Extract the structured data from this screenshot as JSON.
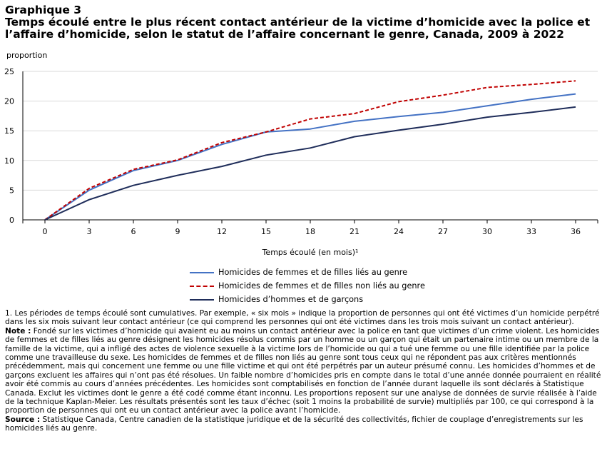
{
  "header": {
    "label": "Graphique 3",
    "title_line1": "Temps écoulé entre le plus récent contact antérieur de la victime d’homicide avec la police et",
    "title_line2": "l’affaire d’homicide, selon le statut de l’affaire concernant le genre, Canada, 2009 à 2022"
  },
  "chart_data": {
    "type": "line",
    "title": "Temps écoulé entre le plus récent contact antérieur de la victime d’homicide avec la police et l’affaire d’homicide, selon le statut de l’affaire concernant le genre, Canada, 2009 à 2022",
    "ylabel": "proportion",
    "xlabel": "Temps écoulé (en mois)¹",
    "x": [
      0,
      3,
      6,
      9,
      12,
      15,
      18,
      21,
      24,
      27,
      30,
      33,
      36
    ],
    "ylim": [
      0,
      25
    ],
    "xlim": [
      -1.5,
      37.5
    ],
    "yticks": [
      0,
      5,
      10,
      15,
      20,
      25
    ],
    "grid": "horizontal",
    "legend_position": "bottom",
    "series": [
      {
        "name": "Homicides de femmes et de filles liés au genre",
        "color": "#4472c4",
        "style": "solid",
        "values": [
          0,
          5.0,
          8.3,
          10.0,
          12.7,
          14.8,
          15.3,
          16.6,
          17.4,
          18.1,
          19.2,
          20.3,
          21.2
        ]
      },
      {
        "name": "Homicides de femmes et de filles non liés au genre",
        "color": "#c00000",
        "style": "dashed",
        "values": [
          0,
          5.3,
          8.5,
          10.1,
          13.0,
          14.8,
          17.0,
          17.9,
          19.9,
          21.0,
          22.3,
          22.8,
          23.4
        ]
      },
      {
        "name": "Homicides d’hommes et de garçons",
        "color": "#1f2d5a",
        "style": "solid",
        "values": [
          0,
          3.4,
          5.8,
          7.5,
          9.0,
          10.9,
          12.1,
          14.0,
          15.1,
          16.1,
          17.3,
          18.1,
          19.0
        ]
      }
    ]
  },
  "footer": {
    "note1": "1. Les périodes de temps écoulé sont cumulatives. Par exemple, « six mois » indique la proportion de personnes qui ont été victimes d’un homicide perpétré dans les six mois suivant leur contact antérieur (ce qui comprend les personnes qui ont été victimes dans les trois mois suivant un contact antérieur).",
    "note_label": "Note :",
    "note_text": " Fondé sur les victimes d’homicide qui avaient eu au moins un contact antérieur avec la police en tant que victimes d’un crime violent. Les homicides de femmes et de filles liés au genre désignent les homicides résolus commis par un homme ou un garçon qui était un partenaire intime ou un membre de la famille de la victime, qui a infligé des actes de violence sexuelle à la victime lors de l’homicide ou qui a tué une femme ou une fille identifiée par la police comme une travailleuse du sexe. Les homicides de femmes et de filles non liés au genre sont tous ceux qui ne répondent pas aux critères mentionnés précédemment, mais qui concernent une femme ou une fille victime et qui ont été perpétrés par un auteur présumé connu. Les homicides d’hommes et de garçons excluent les affaires qui n’ont pas été résolues. Un faible nombre d’homicides pris en compte dans le total d’une année donnée pourraient en réalité avoir été commis au cours d’années précédentes. Les homicides sont comptabilisés en fonction de l’année durant laquelle ils sont déclarés à Statistique Canada. Exclut les victimes dont le genre a été codé comme étant inconnu. Les proportions reposent sur une analyse de données de survie réalisée à l’aide de la technique Kaplan-Meier. Les résultats présentés sont les taux d’échec (soit 1 moins la probabilité de survie) multipliés par 100, ce qui correspond à la proportion de personnes qui ont eu un contact antérieur avec la police avant l’homicide.",
    "source_label": "Source :",
    "source_text": " Statistique Canada, Centre canadien de la statistique juridique et de la sécurité des collectivités, fichier de couplage d’enregistrements sur les homicides liés au genre."
  }
}
